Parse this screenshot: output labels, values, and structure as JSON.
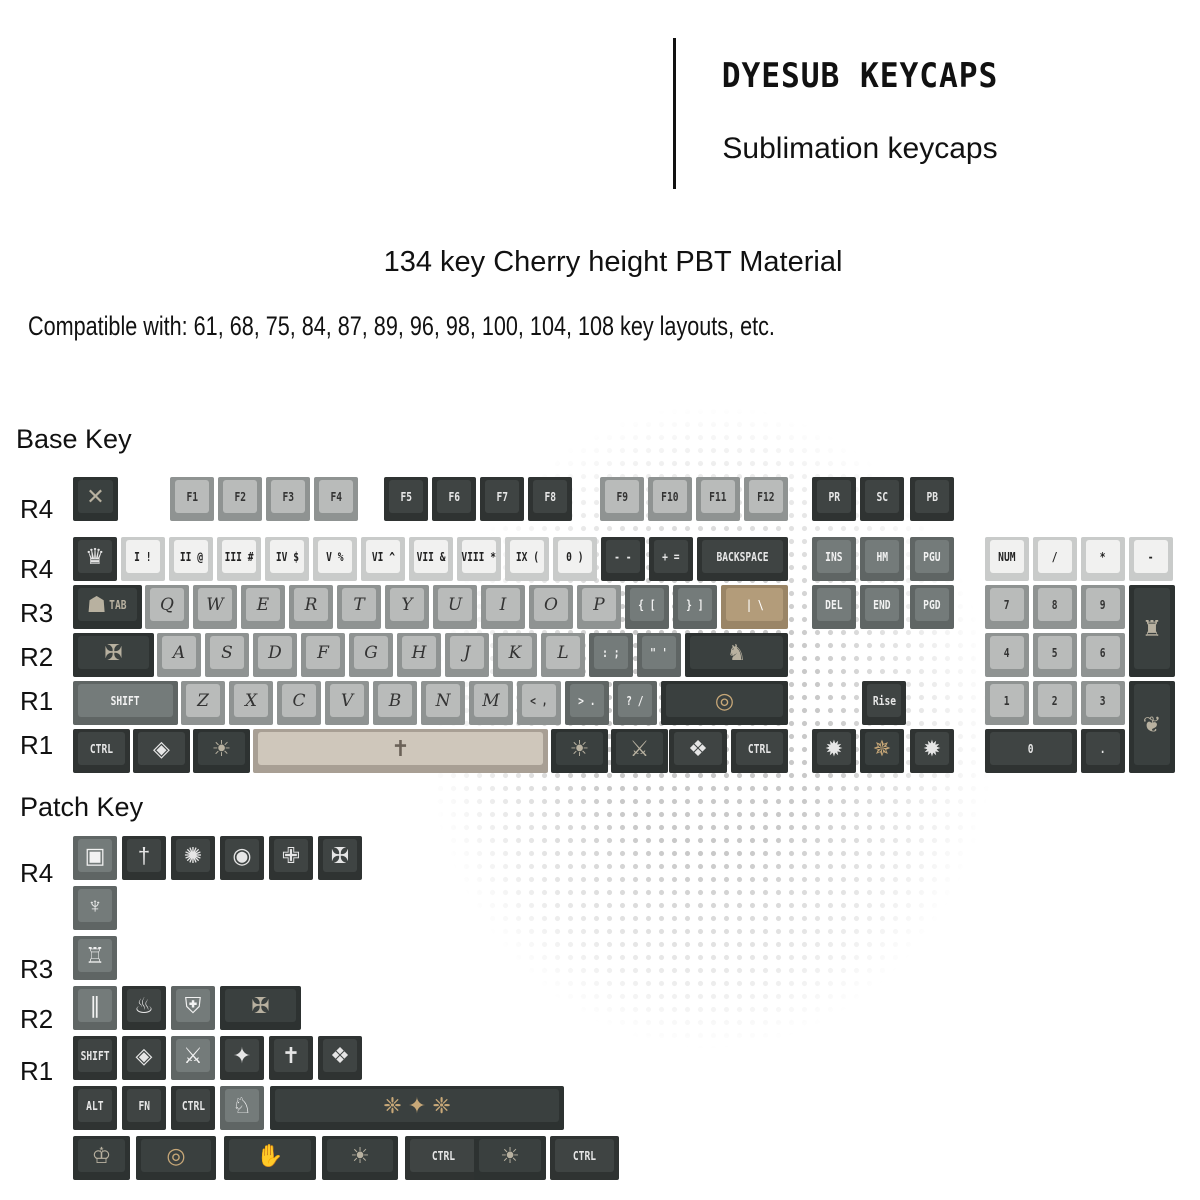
{
  "header": {
    "title": "DYESUB KEYCAPS",
    "subtitle": "Sublimation keycaps"
  },
  "spec": "134 key Cherry height PBT Material",
  "compat": "Compatible with: 61, 68, 75, 84, 87, 89, 96, 98, 100, 104, 108 key layouts, etc.",
  "sections": {
    "base": "Base Key",
    "patch": "Patch Key"
  },
  "base_row_labels": [
    "R4",
    "R4",
    "R3",
    "R2",
    "R1",
    "R1"
  ],
  "patch_row_labels": [
    "R4",
    "R3",
    "R2",
    "R1"
  ],
  "colors": {
    "light": "#b9bbba",
    "dark": "#3f4443",
    "mid": "#747b7a",
    "white": "#f1f1f0",
    "tan": "#b39c7a",
    "gold": "#c8a878"
  },
  "base_keys": [
    [
      {
        "t": "art",
        "icon": "crossed-arrows-icon"
      },
      {
        "t": "light",
        "label": "F1"
      },
      {
        "t": "light",
        "label": "F2"
      },
      {
        "t": "light",
        "label": "F3"
      },
      {
        "t": "light",
        "label": "F4"
      },
      {
        "t": "dark",
        "label": "F5"
      },
      {
        "t": "dark",
        "label": "F6"
      },
      {
        "t": "dark",
        "label": "F7"
      },
      {
        "t": "dark",
        "label": "F8"
      },
      {
        "t": "light",
        "label": "F9"
      },
      {
        "t": "light",
        "label": "F10"
      },
      {
        "t": "light",
        "label": "F11"
      },
      {
        "t": "light",
        "label": "F12"
      },
      {
        "t": "dark",
        "label": "PR"
      },
      {
        "t": "dark",
        "label": "SC"
      },
      {
        "t": "dark",
        "label": "PB"
      }
    ],
    [
      {
        "t": "dark",
        "icon": "crown-icon"
      },
      {
        "t": "white",
        "label": "I !"
      },
      {
        "t": "white",
        "label": "II @"
      },
      {
        "t": "white",
        "label": "III #"
      },
      {
        "t": "white",
        "label": "IV $"
      },
      {
        "t": "white",
        "label": "V %"
      },
      {
        "t": "white",
        "label": "VI ^"
      },
      {
        "t": "white",
        "label": "VII &"
      },
      {
        "t": "white",
        "label": "VIII *"
      },
      {
        "t": "white",
        "label": "IX ("
      },
      {
        "t": "white",
        "label": "0 )"
      },
      {
        "t": "dark",
        "label": "- -"
      },
      {
        "t": "dark",
        "label": "+ ="
      },
      {
        "t": "dark",
        "label": "BACKSPACE"
      },
      {
        "t": "mid",
        "label": "INS"
      },
      {
        "t": "mid",
        "label": "HM"
      },
      {
        "t": "mid",
        "label": "PGU"
      },
      {
        "t": "white",
        "label": "NUM"
      },
      {
        "t": "white",
        "label": "/"
      },
      {
        "t": "white",
        "label": "*"
      },
      {
        "t": "white",
        "label": "-"
      }
    ],
    [
      {
        "t": "art",
        "label": "TAB",
        "icon": "figure-icon"
      },
      {
        "t": "light",
        "label": "Q"
      },
      {
        "t": "light",
        "label": "W"
      },
      {
        "t": "light",
        "label": "E"
      },
      {
        "t": "light",
        "label": "R"
      },
      {
        "t": "light",
        "label": "T"
      },
      {
        "t": "light",
        "label": "Y"
      },
      {
        "t": "light",
        "label": "U"
      },
      {
        "t": "light",
        "label": "I"
      },
      {
        "t": "light",
        "label": "O"
      },
      {
        "t": "light",
        "label": "P"
      },
      {
        "t": "mid",
        "label": "{ ["
      },
      {
        "t": "mid",
        "label": "} ]"
      },
      {
        "t": "tan",
        "label": "| \\"
      },
      {
        "t": "mid",
        "label": "DEL"
      },
      {
        "t": "mid",
        "label": "END"
      },
      {
        "t": "mid",
        "label": "PGD"
      },
      {
        "t": "light",
        "label": "7"
      },
      {
        "t": "light",
        "label": "8"
      },
      {
        "t": "light",
        "label": "9"
      },
      {
        "t": "art",
        "icon": "lantern-icon"
      }
    ],
    [
      {
        "t": "art",
        "icon": "winged-sword-icon"
      },
      {
        "t": "light",
        "label": "A"
      },
      {
        "t": "light",
        "label": "S"
      },
      {
        "t": "light",
        "label": "D"
      },
      {
        "t": "light",
        "label": "F"
      },
      {
        "t": "light",
        "label": "G"
      },
      {
        "t": "light",
        "label": "H"
      },
      {
        "t": "light",
        "label": "J"
      },
      {
        "t": "light",
        "label": "K"
      },
      {
        "t": "light",
        "label": "L"
      },
      {
        "t": "mid",
        "label": ": ;"
      },
      {
        "t": "mid",
        "label": "\" '"
      },
      {
        "t": "art",
        "icon": "knight-tombstone-icon"
      },
      {
        "t": "light",
        "label": "4"
      },
      {
        "t": "light",
        "label": "5"
      },
      {
        "t": "light",
        "label": "6"
      }
    ],
    [
      {
        "t": "mid",
        "label": "SHIFT",
        "icon": "flame-icon"
      },
      {
        "t": "light",
        "label": "Z"
      },
      {
        "t": "light",
        "label": "X"
      },
      {
        "t": "light",
        "label": "C"
      },
      {
        "t": "light",
        "label": "V"
      },
      {
        "t": "light",
        "label": "B"
      },
      {
        "t": "light",
        "label": "N"
      },
      {
        "t": "light",
        "label": "M"
      },
      {
        "t": "light",
        "label": "< ,"
      },
      {
        "t": "mid",
        "label": "> ."
      },
      {
        "t": "mid",
        "label": "? /"
      },
      {
        "t": "art",
        "icon": "halo-ring-icon"
      },
      {
        "t": "dark",
        "label": "Rise"
      },
      {
        "t": "light",
        "label": "1"
      },
      {
        "t": "light",
        "label": "2"
      },
      {
        "t": "light",
        "label": "3"
      },
      {
        "t": "art",
        "icon": "ornate-crest-icon"
      }
    ],
    [
      {
        "t": "dark",
        "label": "CTRL"
      },
      {
        "t": "dark",
        "icon": "eye-icon"
      },
      {
        "t": "art",
        "icon": "sun-sigil-icon"
      },
      {
        "t": "scene",
        "icon": "cathedral-scene-icon"
      },
      {
        "t": "art",
        "icon": "sun-sigil-icon"
      },
      {
        "t": "art",
        "icon": "crossed-swords-icon"
      },
      {
        "t": "dark",
        "icon": "crest-icon"
      },
      {
        "t": "dark",
        "label": "CTRL"
      },
      {
        "t": "dark",
        "icon": "sun-left-icon"
      },
      {
        "t": "art",
        "icon": "gold-compass-icon"
      },
      {
        "t": "dark",
        "icon": "sun-right-icon"
      },
      {
        "t": "dark",
        "label": "0",
        "icon": "crown-icon"
      },
      {
        "t": "dark",
        "label": "."
      }
    ]
  ],
  "patch_keys": [
    [
      {
        "t": "mid",
        "icon": "seal-icon"
      },
      {
        "t": "dark",
        "icon": "sword-flame-icon"
      },
      {
        "t": "dark",
        "icon": "skull-sun-icon"
      },
      {
        "t": "dark",
        "icon": "medallion-icon"
      },
      {
        "t": "dark",
        "icon": "celtic-cross-icon"
      },
      {
        "t": "dark",
        "icon": "winged-sword-icon"
      }
    ],
    [
      {
        "t": "mid",
        "icon": "mask-icon"
      }
    ],
    [
      {
        "t": "mid",
        "icon": "helmet-icon"
      }
    ],
    [
      {
        "t": "mid",
        "icon": "spears-icon"
      },
      {
        "t": "dark",
        "icon": "flame-icon"
      },
      {
        "t": "mid",
        "icon": "shield-icon"
      },
      {
        "t": "art",
        "icon": "winged-sword-icon"
      }
    ],
    [
      {
        "t": "dark",
        "label": "SHIFT"
      },
      {
        "t": "dark",
        "icon": "eye-icon"
      },
      {
        "t": "mid",
        "icon": "crossed-swords-icon"
      },
      {
        "t": "dark",
        "icon": "star-cross-icon"
      },
      {
        "t": "dark",
        "icon": "cross-icon"
      },
      {
        "t": "dark",
        "icon": "crest-icon"
      }
    ],
    [
      {
        "t": "dark",
        "label": "ALT"
      },
      {
        "t": "dark",
        "label": "FN"
      },
      {
        "t": "dark",
        "label": "CTRL"
      },
      {
        "t": "mid",
        "icon": "knight-icon"
      },
      {
        "t": "art",
        "icon": "gold-ornament-icon"
      }
    ],
    [
      {
        "t": "art",
        "icon": "thorn-crown-icon"
      },
      {
        "t": "art",
        "icon": "halo-ring-icon"
      },
      {
        "t": "art",
        "icon": "reaching-hands-icon"
      },
      {
        "t": "art",
        "icon": "sun-sigil-icon"
      },
      {
        "t": "dark",
        "label": "CTRL"
      },
      {
        "t": "art",
        "icon": "sun-sigil-icon"
      },
      {
        "t": "dark",
        "label": "CTRL"
      }
    ]
  ]
}
